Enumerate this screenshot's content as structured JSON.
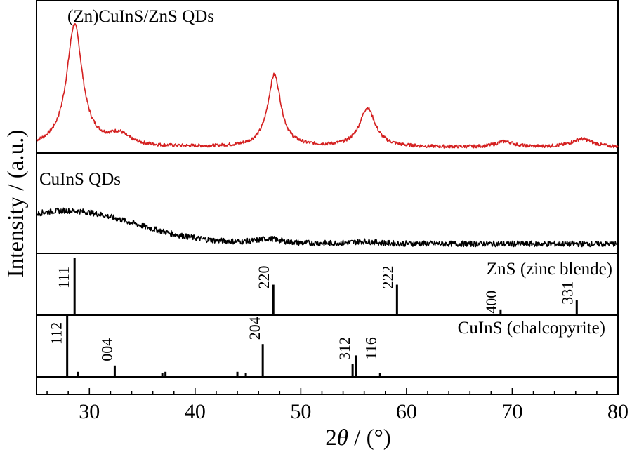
{
  "chart_data": {
    "type": "line",
    "xlabel_prefix": "2",
    "xlabel_theta": "θ",
    "xlabel_suffix": " / (°)",
    "ylabel": "Intensity / (a.u.)",
    "xlim": [
      25,
      80
    ],
    "x_ticks": [
      30,
      40,
      50,
      60,
      70,
      80
    ],
    "colors": {
      "doped": "#d42020",
      "undoped": "#000000",
      "refs": "#000000"
    },
    "series": [
      {
        "name": "(Zn)CuInS/ZnS QDs",
        "color": "#d42020",
        "baseline": 0.04,
        "peaks": [
          {
            "x": 28.6,
            "h": 0.88,
            "w": 0.9
          },
          {
            "x": 32.8,
            "h": 0.08,
            "w": 1.2
          },
          {
            "x": 47.5,
            "h": 0.52,
            "w": 0.75
          },
          {
            "x": 56.3,
            "h": 0.28,
            "w": 0.9
          },
          {
            "x": 69.3,
            "h": 0.04,
            "w": 1.0
          },
          {
            "x": 76.6,
            "h": 0.06,
            "w": 1.2
          }
        ],
        "noise": 0.012
      },
      {
        "name": "CuInS QDs",
        "color": "#000000",
        "baseline": 0.1,
        "broad": {
          "x": 27.8,
          "h": 0.35,
          "w": 6.5
        },
        "peaks": [
          {
            "x": 47.0,
            "h": 0.05,
            "w": 1.5
          },
          {
            "x": 56.0,
            "h": 0.025,
            "w": 1.5
          }
        ],
        "noise": 0.03
      }
    ],
    "references": [
      {
        "name": "ZnS (zinc blende)",
        "lines": [
          {
            "x": 28.6,
            "h": 1.0,
            "hkl": "111"
          },
          {
            "x": 47.4,
            "h": 0.53,
            "hkl": "220"
          },
          {
            "x": 59.1,
            "h": 0.53,
            "hkl": "222"
          },
          {
            "x": 68.9,
            "h": 0.1,
            "hkl": "400"
          },
          {
            "x": 76.1,
            "h": 0.26,
            "hkl": "331"
          }
        ]
      },
      {
        "name": "CuInS (chalcopyrite)",
        "lines": [
          {
            "x": 27.9,
            "h": 1.0,
            "hkl": "112"
          },
          {
            "x": 28.9,
            "h": 0.08,
            "hkl": ""
          },
          {
            "x": 32.4,
            "h": 0.18,
            "hkl": "004"
          },
          {
            "x": 36.9,
            "h": 0.06,
            "hkl": ""
          },
          {
            "x": 37.2,
            "h": 0.08,
            "hkl": ""
          },
          {
            "x": 44.0,
            "h": 0.08,
            "hkl": ""
          },
          {
            "x": 44.8,
            "h": 0.06,
            "hkl": ""
          },
          {
            "x": 46.4,
            "h": 0.52,
            "hkl": "204"
          },
          {
            "x": 54.9,
            "h": 0.2,
            "hkl": "312"
          },
          {
            "x": 55.2,
            "h": 0.34,
            "hkl": "116"
          },
          {
            "x": 57.5,
            "h": 0.06,
            "hkl": ""
          }
        ]
      }
    ]
  }
}
